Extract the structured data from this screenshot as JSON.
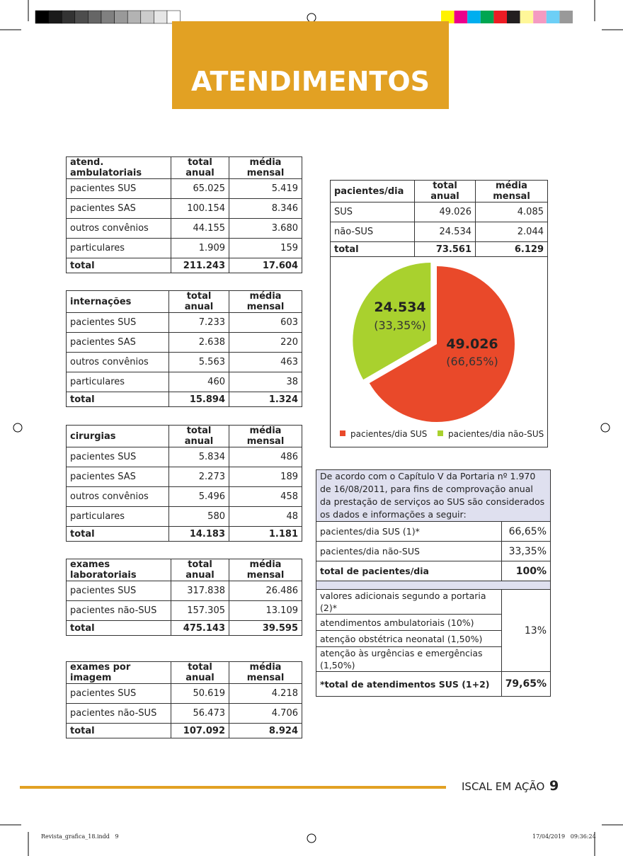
{
  "header": {
    "title": "ATENDIMENTOS"
  },
  "tables": [
    {
      "header": [
        "atend. ambulatoriais",
        "total anual",
        "média mensal"
      ],
      "rows": [
        [
          "pacientes SUS",
          "65.025",
          "5.419"
        ],
        [
          "pacientes SAS",
          "100.154",
          "8.346"
        ],
        [
          "outros convênios",
          "44.155",
          "3.680"
        ],
        [
          "particulares",
          "1.909",
          "159"
        ],
        [
          "total",
          "211.243",
          "17.604"
        ]
      ]
    },
    {
      "header": [
        "internações",
        "total anual",
        "média mensal"
      ],
      "rows": [
        [
          "pacientes SUS",
          "7.233",
          "603"
        ],
        [
          "pacientes SAS",
          "2.638",
          "220"
        ],
        [
          "outros convênios",
          "5.563",
          "463"
        ],
        [
          "particulares",
          "460",
          "38"
        ],
        [
          "total",
          "15.894",
          "1.324"
        ]
      ]
    },
    {
      "header": [
        "cirurgias",
        "total anual",
        "média mensal"
      ],
      "rows": [
        [
          "pacientes SUS",
          "5.834",
          "486"
        ],
        [
          "pacientes SAS",
          "2.273",
          "189"
        ],
        [
          "outros convênios",
          "5.496",
          "458"
        ],
        [
          "particulares",
          "580",
          "48"
        ],
        [
          "total",
          "14.183",
          "1.181"
        ]
      ]
    },
    {
      "header": [
        "exames laboratoriais",
        "total anual",
        "média mensal"
      ],
      "rows": [
        [
          "pacientes SUS",
          "317.838",
          "26.486"
        ],
        [
          "pacientes não-SUS",
          "157.305",
          "13.109"
        ],
        [
          "total",
          "475.143",
          "39.595"
        ]
      ]
    },
    {
      "header": [
        "exames por imagem",
        "total anual",
        "média mensal"
      ],
      "rows": [
        [
          "pacientes SUS",
          "50.619",
          "4.218"
        ],
        [
          "pacientes não-SUS",
          "56.473",
          "4.706"
        ],
        [
          "total",
          "107.092",
          "8.924"
        ]
      ]
    },
    {
      "header": [
        "pacientes/dia",
        "total anual",
        "média mensal"
      ],
      "rows": [
        [
          "SUS",
          "49.026",
          "4.085"
        ],
        [
          "não-SUS",
          "24.534",
          "2.044"
        ],
        [
          "total",
          "73.561",
          "6.129"
        ]
      ]
    }
  ],
  "chart_data": {
    "type": "pie",
    "categories": [
      "pacientes/dia SUS",
      "pacientes/dia não-SUS"
    ],
    "values": [
      49026,
      24534
    ],
    "value_labels": [
      "49.026",
      "24.534"
    ],
    "percent_labels": [
      "(66,65%)",
      "(33,35%)"
    ],
    "colors": [
      "#e9492a",
      "#a9d12e"
    ],
    "legend": "bottom"
  },
  "info": {
    "intro": "De acordo com o Capítulo V da Portaria nº 1.970 de 16/08/2011, para fins de comprovação anual da prestação de serviços ao SUS são considerados os dados e informações a seguir:",
    "rows": [
      [
        "pacientes/dia SUS (1)*",
        "66,65%"
      ],
      [
        "pacientes/dia não-SUS",
        "33,35%"
      ],
      [
        "total de pacientes/dia",
        "100%"
      ]
    ],
    "extra_rows": [
      "valores adicionais segundo a portaria (2)*",
      "atendimentos ambulatoriais (10%)",
      "atenção obstétrica neonatal (1,50%)",
      "atenção às urgências e emergências (1,50%)"
    ],
    "extra_value": "13%",
    "total": [
      "*total de atendimentos SUS (1+2)",
      "79,65%"
    ]
  },
  "footer": {
    "brand": "ISCAL EM AÇÃO",
    "page": "9",
    "file": "Revista_grafica_18.indd   9",
    "date": "17/04/2019   09:36:24"
  }
}
